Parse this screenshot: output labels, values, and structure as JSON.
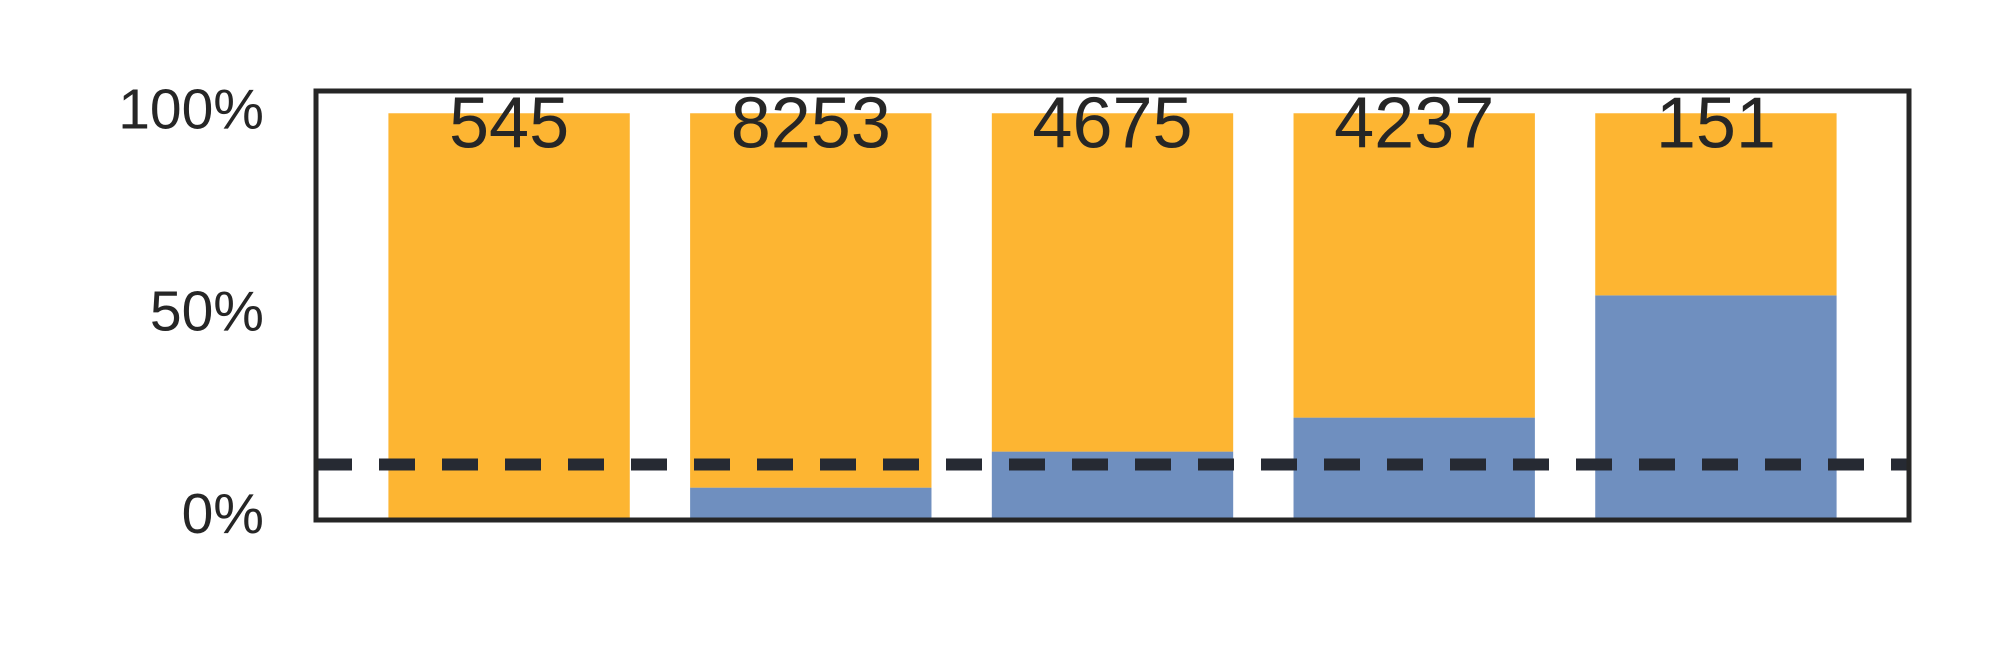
{
  "chart_data": {
    "type": "stacked_bar_100",
    "categories": [
      null,
      null,
      null,
      null,
      null
    ],
    "series": [
      {
        "color": "#6f8fbf",
        "values": [
          0,
          7.5,
          16.4,
          24.8,
          55
        ]
      },
      {
        "color": "#fdb532",
        "values": [
          100,
          92.5,
          83.6,
          75.2,
          45
        ]
      }
    ],
    "bar_labels": [
      545,
      8253,
      4675,
      4237,
      151
    ],
    "reference_line": {
      "value": 13.2,
      "style": "dashed",
      "color": "#262a33"
    },
    "ylim": [
      -0.5,
      105.5
    ],
    "yticks": [
      {
        "value": 0,
        "label": "0%"
      },
      {
        "value": 50,
        "label": "50%"
      },
      {
        "value": 100,
        "label": "100%"
      }
    ],
    "grid": false
  }
}
